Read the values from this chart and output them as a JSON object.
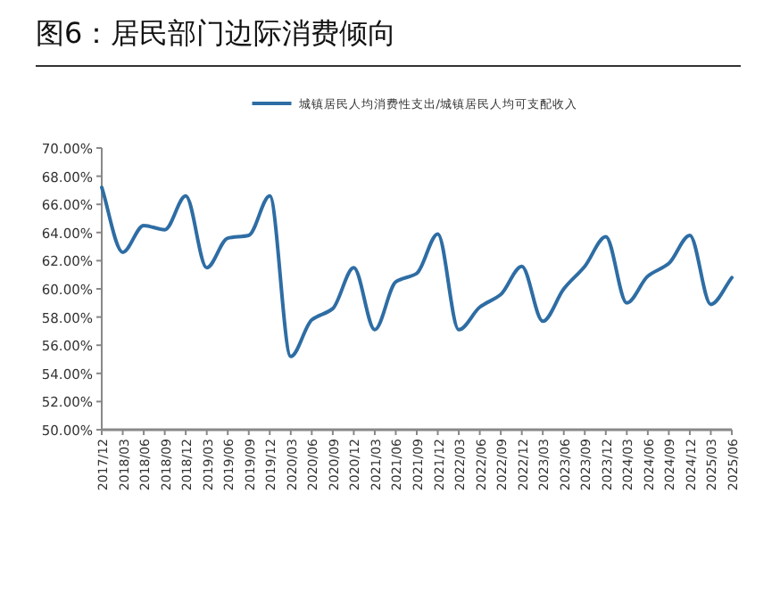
{
  "chart_data": {
    "type": "line",
    "title": "图6：居民部门边际消费倾向",
    "categories": [
      "2017/12",
      "2018/03",
      "2018/06",
      "2018/09",
      "2018/12",
      "2019/03",
      "2019/06",
      "2019/09",
      "2019/12",
      "2020/03",
      "2020/06",
      "2020/09",
      "2020/12",
      "2021/03",
      "2021/06",
      "2021/09",
      "2021/12",
      "2022/03",
      "2022/06",
      "2022/09",
      "2022/12",
      "2023/03",
      "2023/06",
      "2023/09",
      "2023/12",
      "2024/03",
      "2024/06",
      "2024/09",
      "2024/12",
      "2025/03",
      "2025/06"
    ],
    "series": [
      {
        "name": "城镇居民人均消费性支出/城镇居民人均可支配收入",
        "color": "#2e6da4",
        "values": [
          67.2,
          62.6,
          64.5,
          64.2,
          66.6,
          61.5,
          63.6,
          63.8,
          66.6,
          55.2,
          57.8,
          58.6,
          61.5,
          57.1,
          60.5,
          61.1,
          63.9,
          57.1,
          58.7,
          59.6,
          61.6,
          57.7,
          60.0,
          61.6,
          63.7,
          59.0,
          60.9,
          61.8,
          63.8,
          58.9,
          60.8
        ]
      }
    ],
    "ylim": [
      50,
      70
    ],
    "yticks": [
      {
        "value": 50,
        "label": "50.00%"
      },
      {
        "value": 52,
        "label": "52.00%"
      },
      {
        "value": 54,
        "label": "54.00%"
      },
      {
        "value": 56,
        "label": "56.00%"
      },
      {
        "value": 58,
        "label": "58.00%"
      },
      {
        "value": 60,
        "label": "60.00%"
      },
      {
        "value": 62,
        "label": "62.00%"
      },
      {
        "value": 64,
        "label": "64.00%"
      },
      {
        "value": 66,
        "label": "66.00%"
      },
      {
        "value": 68,
        "label": "68.00%"
      },
      {
        "value": 70,
        "label": "70.00%"
      }
    ],
    "legend": "top",
    "grid": false,
    "marker": "none",
    "line_style": "solid"
  }
}
